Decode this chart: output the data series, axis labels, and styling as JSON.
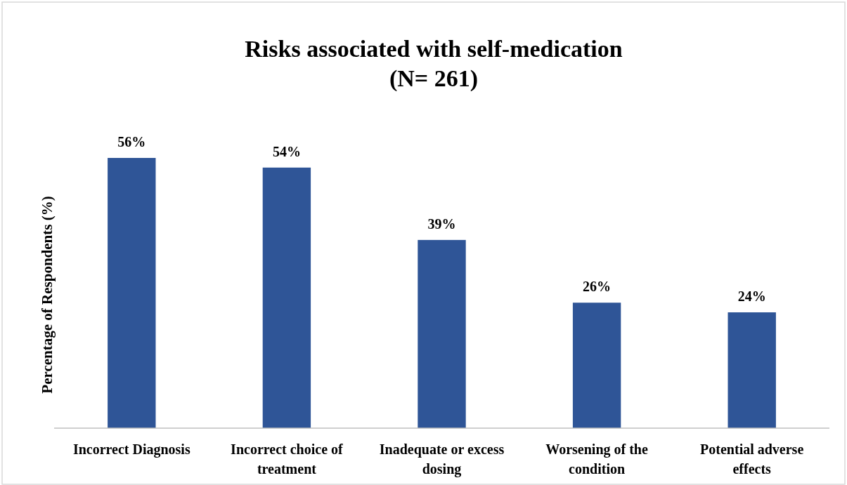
{
  "chart_data": {
    "type": "bar",
    "title": "Risks associated with self-medication",
    "subtitle": "(N= 261)",
    "ylabel": "Percentage of Respondents (%)",
    "categories": [
      "Incorrect Diagnosis",
      "Incorrect choice of treatment",
      "Inadequate or excess dosing",
      "Worsening of the condition",
      "Potential adverse effects"
    ],
    "values": [
      56,
      54,
      39,
      26,
      24
    ],
    "value_labels": [
      "56%",
      "54%",
      "39%",
      "26%",
      "24%"
    ],
    "color": "#2f5597"
  }
}
